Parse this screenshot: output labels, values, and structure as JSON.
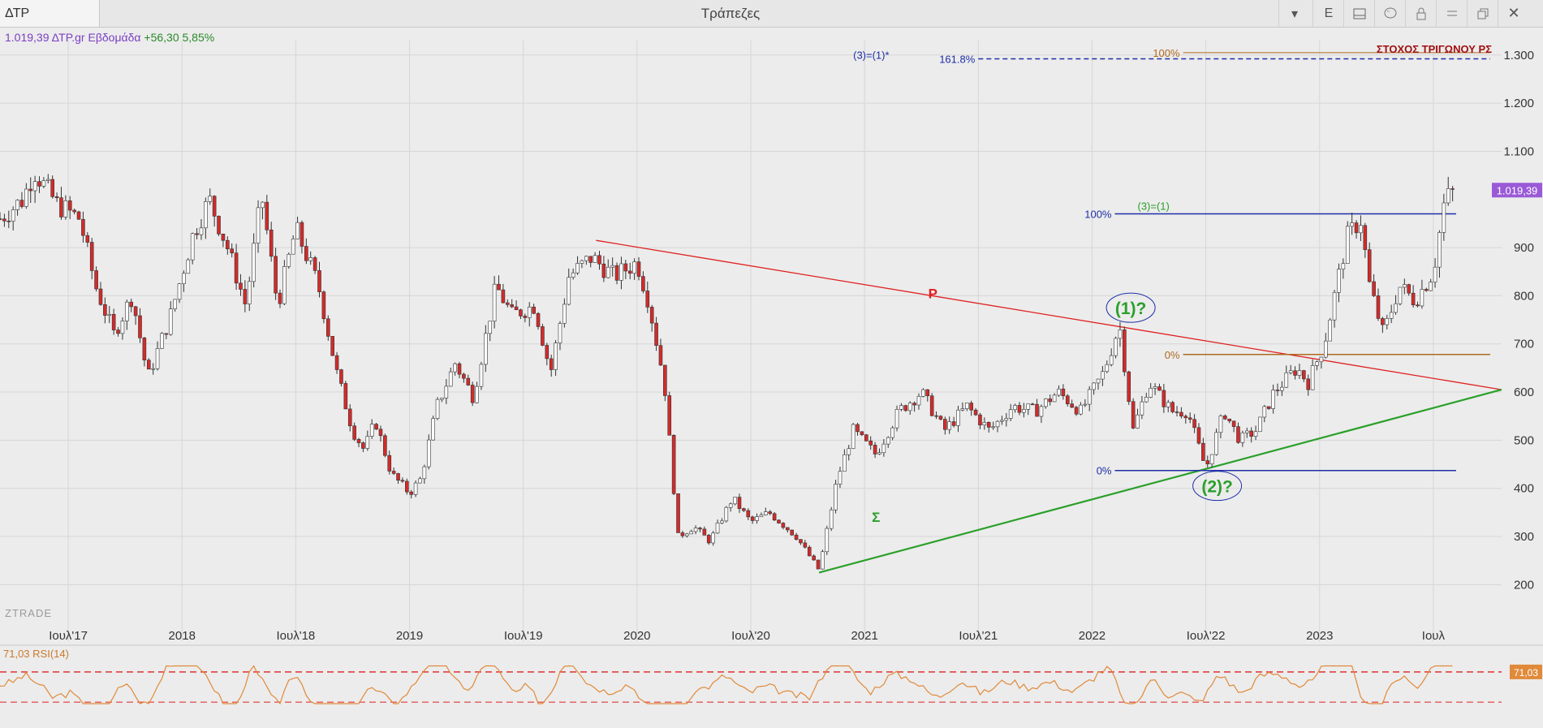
{
  "window": {
    "symbol": "ΔΤΡ",
    "title": "Τράπεζες",
    "buttons": [
      "E"
    ]
  },
  "info_line": {
    "prefix": "1.019,39 ΔΤΡ.gr Εβδομάδα",
    "change": "+56,30 5,85%"
  },
  "logo": "ZTRADE",
  "rsi": {
    "label": "71,03 RSI(14)",
    "last": "71,03"
  },
  "chart_data": {
    "type": "candlestick",
    "series_name": "ΔΤΡ.gr",
    "timeframe": "Εβδομάδα",
    "last_value": "1.019,39",
    "ylim": [
      150,
      1330
    ],
    "ytick_labels": [
      "200",
      "300",
      "400",
      "500",
      "600",
      "700",
      "800",
      "900",
      "1.100",
      "1.200",
      "1.300"
    ],
    "ytick_values": [
      200,
      300,
      400,
      500,
      600,
      700,
      800,
      900,
      1100,
      1200,
      1300
    ],
    "xtick_labels": [
      "Ιουλ'17",
      "2018",
      "Ιουλ'18",
      "2019",
      "Ιουλ'19",
      "2020",
      "Ιουλ'20",
      "2021",
      "Ιουλ'21",
      "2022",
      "Ιουλ'22",
      "2023",
      "Ιουλ"
    ],
    "xtick_values": [
      2017.5,
      2018.0,
      2018.5,
      2019.0,
      2019.5,
      2020.0,
      2020.5,
      2021.0,
      2021.5,
      2022.0,
      2022.5,
      2023.0,
      2023.5
    ],
    "xlim": [
      2017.2,
      2023.8
    ],
    "price_path": [
      [
        2017.2,
        960
      ],
      [
        2017.3,
        1000
      ],
      [
        2017.35,
        1060
      ],
      [
        2017.45,
        990
      ],
      [
        2017.55,
        960
      ],
      [
        2017.62,
        820
      ],
      [
        2017.7,
        720
      ],
      [
        2017.78,
        800
      ],
      [
        2017.85,
        630
      ],
      [
        2017.95,
        760
      ],
      [
        2018.05,
        930
      ],
      [
        2018.12,
        1000
      ],
      [
        2018.2,
        900
      ],
      [
        2018.28,
        780
      ],
      [
        2018.35,
        1010
      ],
      [
        2018.42,
        780
      ],
      [
        2018.5,
        940
      ],
      [
        2018.6,
        820
      ],
      [
        2018.68,
        640
      ],
      [
        2018.75,
        520
      ],
      [
        2018.8,
        480
      ],
      [
        2018.85,
        540
      ],
      [
        2018.92,
        430
      ],
      [
        2019.0,
        390
      ],
      [
        2019.05,
        420
      ],
      [
        2019.12,
        570
      ],
      [
        2019.2,
        660
      ],
      [
        2019.28,
        590
      ],
      [
        2019.38,
        820
      ],
      [
        2019.45,
        760
      ],
      [
        2019.55,
        780
      ],
      [
        2019.62,
        640
      ],
      [
        2019.7,
        840
      ],
      [
        2019.8,
        880
      ],
      [
        2019.9,
        840
      ],
      [
        2020.0,
        870
      ],
      [
        2020.05,
        790
      ],
      [
        2020.12,
        620
      ],
      [
        2020.18,
        300
      ],
      [
        2020.25,
        320
      ],
      [
        2020.32,
        290
      ],
      [
        2020.42,
        380
      ],
      [
        2020.5,
        330
      ],
      [
        2020.58,
        350
      ],
      [
        2020.7,
        300
      ],
      [
        2020.8,
        230
      ],
      [
        2020.88,
        420
      ],
      [
        2020.95,
        520
      ],
      [
        2021.05,
        470
      ],
      [
        2021.15,
        560
      ],
      [
        2021.25,
        600
      ],
      [
        2021.35,
        520
      ],
      [
        2021.45,
        570
      ],
      [
        2021.55,
        520
      ],
      [
        2021.65,
        570
      ],
      [
        2021.75,
        560
      ],
      [
        2021.85,
        600
      ],
      [
        2021.95,
        560
      ],
      [
        2022.05,
        640
      ],
      [
        2022.12,
        740
      ],
      [
        2022.18,
        520
      ],
      [
        2022.25,
        620
      ],
      [
        2022.35,
        560
      ],
      [
        2022.42,
        560
      ],
      [
        2022.5,
        440
      ],
      [
        2022.58,
        560
      ],
      [
        2022.65,
        500
      ],
      [
        2022.72,
        520
      ],
      [
        2022.8,
        600
      ],
      [
        2022.9,
        650
      ],
      [
        2022.95,
        620
      ],
      [
        2023.02,
        700
      ],
      [
        2023.12,
        920
      ],
      [
        2023.18,
        960
      ],
      [
        2023.22,
        820
      ],
      [
        2023.28,
        720
      ],
      [
        2023.35,
        820
      ],
      [
        2023.42,
        790
      ],
      [
        2023.5,
        850
      ],
      [
        2023.55,
        1000
      ],
      [
        2023.6,
        1019.39
      ]
    ],
    "trendlines": [
      {
        "name": "P",
        "color": "#e02020",
        "from": [
          2019.82,
          915
        ],
        "to": [
          2023.8,
          605
        ]
      },
      {
        "name": "Σ",
        "color": "#2aa02a",
        "from": [
          2020.8,
          225
        ],
        "to": [
          2023.8,
          605
        ]
      }
    ],
    "fib_levels": [
      {
        "label": "100%",
        "value": 970,
        "color": "#1f2fa8",
        "note": "(3)=(1)"
      },
      {
        "label": "0%",
        "value": 437,
        "color": "#1f2fa8"
      },
      {
        "label": "161.8%",
        "value": 1292,
        "color": "#1f2fa8",
        "note": "(3)=(1)*"
      },
      {
        "label": "100%",
        "value": 1305,
        "color": "#b06a20",
        "note": "ΣΤΟΧΟΣ ΤΡΙΓΩΝΟΥ ΡΣ"
      },
      {
        "label": "0%",
        "value": 678,
        "color": "#b06a20"
      }
    ],
    "annotations": [
      {
        "text": "(1)?",
        "x": 2022.17,
        "y": 765
      },
      {
        "text": "(2)?",
        "x": 2022.55,
        "y": 395
      },
      {
        "text": "P",
        "x": 2021.3,
        "y": 795
      },
      {
        "text": "Σ",
        "x": 2021.05,
        "y": 330
      }
    ]
  },
  "colors": {
    "down": "#d42a2a",
    "up": "#ffffff",
    "grid": "#d6d6d6",
    "rsi_line": "#e08a3a",
    "last_badge": "#9a5ad8"
  }
}
